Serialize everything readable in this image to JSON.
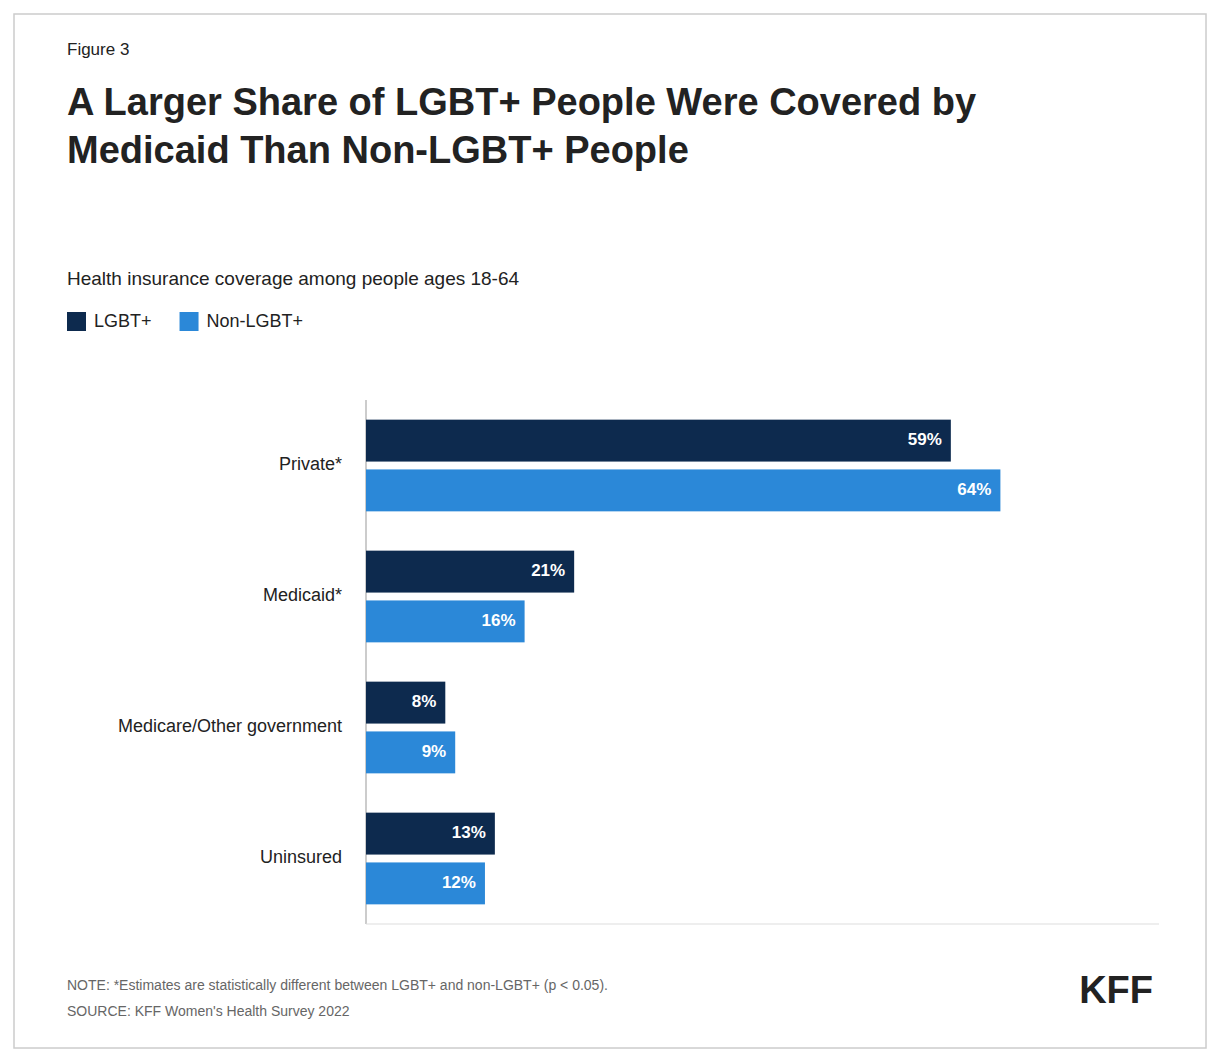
{
  "chart_data": {
    "type": "bar",
    "orientation": "horizontal",
    "title": "A Larger Share of LGBT+ People Were Covered by\nMedicaid Than Non-LGBT+ People",
    "subtitle": "Health insurance coverage among people ages 18-64",
    "annotations": [
      "Figure 3",
      "NOTE: *Estimates are statistically different between LGBT+ and non-LGBT+ (p < 0.05).",
      "SOURCE: KFF Women's Health Survey 2022",
      "KFF"
    ],
    "categories": [
      "Private*",
      "Medicaid*",
      "Medicare/Other government",
      "Uninsured"
    ],
    "series": [
      {
        "name": "LGBT+",
        "color": "#0d2a4e",
        "values": [
          59,
          21,
          8,
          13
        ],
        "value_labels": [
          "59%",
          "21%",
          "8%",
          "13%"
        ]
      },
      {
        "name": "Non-LGBT+",
        "color": "#2b88d8",
        "values": [
          64,
          16,
          9,
          12
        ],
        "value_labels": [
          "64%",
          "16%",
          "9%",
          "12%"
        ]
      }
    ],
    "xlim": [
      0,
      80
    ],
    "data_labels": true,
    "legend": "upper left",
    "grid": false,
    "tick_labels": "y"
  }
}
